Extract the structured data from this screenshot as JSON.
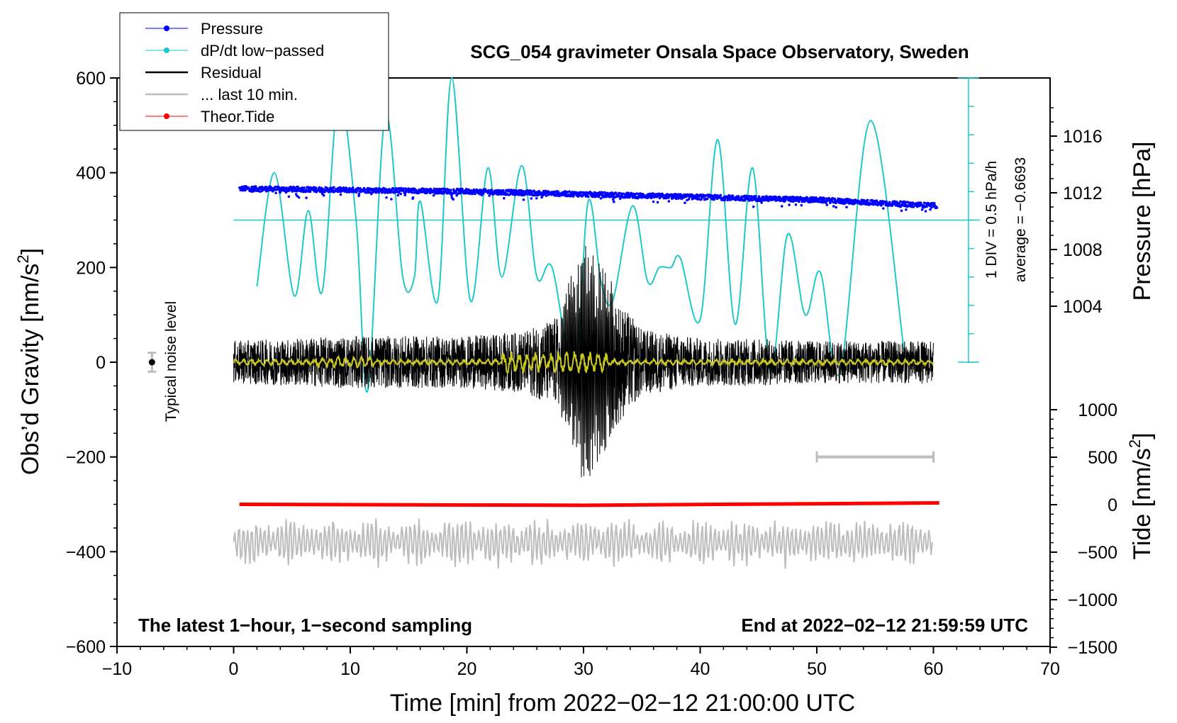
{
  "chart_data": {
    "type": "line",
    "title": "SCG_054 gravimeter Onsala Space Observatory, Sweden",
    "xlabel": "Time [min] from 2022−02−12 21:00:00 UTC",
    "ylabel_left": "Obs’d Gravity [nm/s",
    "ylabel_left_sup": "2",
    "ylabel_left_close": "]",
    "ylabel_right_top": "Pressure [hPa]",
    "ylabel_right_bottom": "Tide [nm/s",
    "ylabel_right_bottom_sup": "2",
    "ylabel_right_bottom_close": "]",
    "xlim": [
      -10,
      70
    ],
    "ylim": [
      -600,
      600
    ],
    "x_ticks": [
      -10,
      0,
      10,
      20,
      30,
      40,
      50,
      60,
      70
    ],
    "x_tick_labels": [
      "−10",
      "0",
      "10",
      "20",
      "30",
      "40",
      "50",
      "60",
      "70"
    ],
    "y_ticks": [
      -600,
      -400,
      -200,
      0,
      200,
      400,
      600
    ],
    "y_tick_labels": [
      "−600",
      "−400",
      "−200",
      "0",
      "200",
      "400",
      "600"
    ],
    "pressure_ticks": [
      1004,
      1008,
      1012,
      1016
    ],
    "pressure_tick_labels": [
      "1004",
      "1008",
      "1012",
      "1016"
    ],
    "tide_ticks": [
      -1500,
      -1000,
      -500,
      0,
      500,
      1000
    ],
    "tide_tick_labels": [
      "−1500",
      "−1000",
      "−500",
      "0",
      "500",
      "1000"
    ],
    "legend": [
      {
        "label": "Pressure",
        "color": "#0000ff",
        "marker": true
      },
      {
        "label": "dP/dt low−passed",
        "color": "#20c8c8",
        "marker": true
      },
      {
        "label": "Residual",
        "color": "#000000",
        "marker": false
      },
      {
        "label": "... last 10 min.",
        "color": "#bdbdbd",
        "marker": false
      },
      {
        "label": "Theor.Tide",
        "color": "#ff0000",
        "marker": true
      }
    ],
    "annotations": {
      "bottom_left": "The latest 1−hour, 1−second sampling",
      "bottom_right": "End at 2022−02−12 21:59:59 UTC",
      "noise_label": "Typical noise level",
      "dpdt_scale": "1 DIV = 0.5 hPa/h",
      "dpdt_average": "average = −0.6693"
    },
    "pressure_series": {
      "name": "Pressure",
      "x": [
        0.5,
        10,
        20,
        30,
        40,
        50,
        60
      ],
      "values": [
        1012.3,
        1012.2,
        1012.1,
        1011.9,
        1011.7,
        1011.5,
        1011.1
      ],
      "unit": "hPa"
    },
    "dpdt_series": {
      "name": "dP/dt low-passed",
      "baseline_y": 300,
      "x": [
        2,
        3.5,
        5.2,
        6.4,
        7.6,
        9,
        10.5,
        11.5,
        13,
        14.5,
        15.5,
        16,
        17.5,
        18.7,
        20.3,
        21.8,
        23,
        24.7,
        26,
        27.3,
        29.2,
        30.4,
        31.5,
        32.5,
        34.2,
        35.5,
        36.5,
        37.5,
        38.3,
        40,
        41.5,
        43,
        44.5,
        46,
        47.5,
        49,
        50.3,
        52,
        54.6,
        57.5
      ],
      "values": [
        160,
        400,
        140,
        320,
        150,
        560,
        300,
        -60,
        520,
        180,
        180,
        340,
        130,
        600,
        130,
        410,
        180,
        415,
        180,
        200,
        -20,
        340,
        170,
        130,
        330,
        170,
        200,
        200,
        220,
        90,
        470,
        80,
        410,
        -20,
        270,
        100,
        190,
        -20,
        510,
        20
      ]
    },
    "residual_series": {
      "name": "Residual",
      "x_range": [
        0,
        60
      ],
      "envelope": {
        "x": [
          0,
          10,
          20,
          25,
          28,
          30,
          32,
          35,
          40,
          45,
          50,
          60
        ],
        "amp": [
          45,
          55,
          55,
          65,
          100,
          210,
          160,
          70,
          50,
          50,
          45,
          45
        ]
      }
    },
    "lowpass_series": {
      "name": "Residual low-passed",
      "color": "#c8c820",
      "x_range": [
        0,
        60
      ]
    },
    "last10_series": {
      "name": "... last 10 min.",
      "center_y": -380,
      "amplitude": 60,
      "x_range": [
        0,
        60
      ]
    },
    "tide_series": {
      "name": "Theor.Tide",
      "x": [
        0.5,
        30,
        60.5
      ],
      "values": [
        -300,
        -302,
        -297
      ],
      "tide_units_values": [
        0,
        -10,
        15
      ]
    },
    "scale_bar": {
      "x_start": 50,
      "x_end": 60,
      "y": -200
    },
    "noise_level": {
      "x": -7,
      "y": 0,
      "error": 20
    }
  }
}
